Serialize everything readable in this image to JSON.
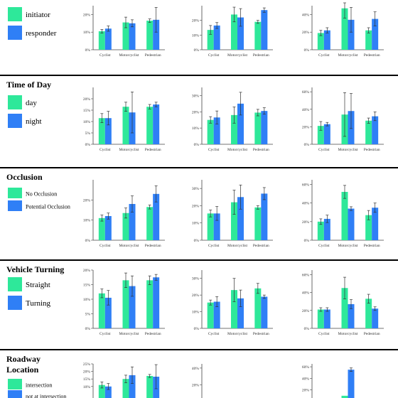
{
  "colors": {
    "green": "#2ee89a",
    "blue": "#2f7ff6",
    "rule": "#000000",
    "axis": "#444444",
    "errbar": "#333333"
  },
  "categories": [
    "Cyclist",
    "Motorcyclist",
    "Pedestrian"
  ],
  "chart_data": [
    {
      "type": "bar",
      "title": "",
      "legend": [
        "initiator",
        "responder"
      ],
      "panels": [
        {
          "ylim": [
            0,
            25
          ],
          "yticks": [
            "0%",
            "10%",
            "20%"
          ],
          "tick_values": [
            0,
            10,
            20
          ],
          "series": [
            {
              "name": "initiator",
              "values": [
                10.5,
                15.5,
                16.5
              ],
              "err": [
                1,
                3,
                1
              ]
            },
            {
              "name": "responder",
              "values": [
                12,
                15,
                17
              ],
              "err": [
                1.5,
                2,
                7
              ]
            }
          ]
        },
        {
          "ylim": [
            0,
            30
          ],
          "yticks": [
            "0%",
            "10%",
            "20%"
          ],
          "tick_values": [
            0,
            10,
            20
          ],
          "series": [
            {
              "name": "initiator",
              "values": [
                13.5,
                24,
                19
              ],
              "err": [
                3,
                5,
                1
              ]
            },
            {
              "name": "responder",
              "values": [
                16.5,
                22,
                27
              ],
              "err": [
                2,
                6,
                1.5
              ]
            }
          ]
        },
        {
          "ylim": [
            0,
            50
          ],
          "yticks": [
            "0%",
            "20%",
            "40%"
          ],
          "tick_values": [
            0,
            20,
            40
          ],
          "series": [
            {
              "name": "initiator",
              "values": [
                19,
                47,
                22
              ],
              "err": [
                3,
                11,
                3
              ]
            },
            {
              "name": "responder",
              "values": [
                22,
                34,
                35
              ],
              "err": [
                3,
                14,
                8
              ]
            }
          ]
        }
      ]
    },
    {
      "type": "bar",
      "title": "Time of Day",
      "legend": [
        "day",
        "night"
      ],
      "panels": [
        {
          "ylim": [
            0,
            25
          ],
          "yticks": [
            "0%",
            "5%",
            "10%",
            "15%",
            "20%"
          ],
          "tick_values": [
            0,
            5,
            10,
            15,
            20
          ],
          "series": [
            {
              "name": "day",
              "values": [
                11.5,
                16.5,
                16.5
              ],
              "err": [
                2,
                2,
                1
              ]
            },
            {
              "name": "night",
              "values": [
                11.5,
                14,
                17.5
              ],
              "err": [
                3,
                9,
                1
              ]
            }
          ]
        },
        {
          "ylim": [
            0,
            35
          ],
          "yticks": [
            "0%",
            "10%",
            "20%",
            "30%"
          ],
          "tick_values": [
            0,
            10,
            20,
            30
          ],
          "series": [
            {
              "name": "day",
              "values": [
                15,
                18,
                19.5
              ],
              "err": [
                2,
                5,
                2
              ]
            },
            {
              "name": "night",
              "values": [
                16.5,
                25,
                20.5
              ],
              "err": [
                4,
                7,
                2
              ]
            }
          ]
        },
        {
          "ylim": [
            0,
            65
          ],
          "yticks": [
            "0%",
            "20%",
            "40%",
            "60%"
          ],
          "tick_values": [
            0,
            20,
            40,
            60
          ],
          "series": [
            {
              "name": "day",
              "values": [
                21,
                34,
                27
              ],
              "err": [
                5,
                25,
                3
              ]
            },
            {
              "name": "night",
              "values": [
                23,
                38,
                32
              ],
              "err": [
                2,
                20,
                5
              ]
            }
          ]
        }
      ]
    },
    {
      "type": "bar",
      "title": "Occlusion",
      "legend": [
        "No Occlusion",
        "Potential Occlusion"
      ],
      "panels": [
        {
          "ylim": [
            0,
            30
          ],
          "yticks": [
            "0%",
            "10%",
            "20%"
          ],
          "tick_values": [
            0,
            10,
            20
          ],
          "series": [
            {
              "name": "No Occlusion",
              "values": [
                11,
                13.5,
                16.5
              ],
              "err": [
                1.5,
                2.5,
                1
              ]
            },
            {
              "name": "Potential Occlusion",
              "values": [
                12,
                18,
                23
              ],
              "err": [
                1.5,
                4,
                4
              ]
            }
          ]
        },
        {
          "ylim": [
            0,
            35
          ],
          "yticks": [
            "0%",
            "10%",
            "20%",
            "30%"
          ],
          "tick_values": [
            0,
            10,
            20,
            30
          ],
          "series": [
            {
              "name": "No Occlusion",
              "values": [
                15.5,
                22,
                19
              ],
              "err": [
                2,
                7,
                1
              ]
            },
            {
              "name": "Potential Occlusion",
              "values": [
                15.5,
                25,
                27
              ],
              "err": [
                4,
                7,
                3.5
              ]
            }
          ]
        },
        {
          "ylim": [
            0,
            65
          ],
          "yticks": [
            "0%",
            "20%",
            "40%",
            "60%"
          ],
          "tick_values": [
            0,
            20,
            40,
            60
          ],
          "series": [
            {
              "name": "No Occlusion",
              "values": [
                20,
                52,
                27
              ],
              "err": [
                3,
                7,
                5
              ]
            },
            {
              "name": "Potential Occlusion",
              "values": [
                23,
                34,
                35
              ],
              "err": [
                4,
                2,
                5
              ]
            }
          ]
        }
      ]
    },
    {
      "type": "bar",
      "title": "Vehicle Turning",
      "legend": [
        "Straight",
        "Turning"
      ],
      "panels": [
        {
          "ylim": [
            0,
            20
          ],
          "yticks": [
            "0%",
            "5%",
            "10%",
            "15%",
            "20%"
          ],
          "tick_values": [
            0,
            5,
            10,
            15,
            20
          ],
          "series": [
            {
              "name": "Straight",
              "values": [
                12,
                16.5,
                16.5
              ],
              "err": [
                1.5,
                2.5,
                1.5
              ]
            },
            {
              "name": "Turning",
              "values": [
                10.5,
                14.5,
                17.5
              ],
              "err": [
                2.5,
                3.5,
                1
              ]
            }
          ]
        },
        {
          "ylim": [
            0,
            35
          ],
          "yticks": [
            "0%",
            "10%",
            "20%",
            "30%"
          ],
          "tick_values": [
            0,
            10,
            20,
            30
          ],
          "series": [
            {
              "name": "Straight",
              "values": [
                15.5,
                23,
                24
              ],
              "err": [
                1.5,
                7,
                3
              ]
            },
            {
              "name": "Turning",
              "values": [
                16,
                18,
                19
              ],
              "err": [
                3,
                5,
                1
              ]
            }
          ]
        },
        {
          "ylim": [
            0,
            65
          ],
          "yticks": [
            "0%",
            "20%",
            "40%",
            "60%"
          ],
          "tick_values": [
            0,
            20,
            40,
            60
          ],
          "series": [
            {
              "name": "Straight",
              "values": [
                21,
                45,
                33
              ],
              "err": [
                2,
                12,
                5
              ]
            },
            {
              "name": "Turning",
              "values": [
                21,
                27,
                22
              ],
              "err": [
                2,
                5,
                2
              ]
            }
          ]
        }
      ]
    },
    {
      "type": "bar",
      "title": "Roadway Location",
      "legend": [
        "intersection",
        "not at intersection"
      ],
      "panels": [
        {
          "ylim": [
            0,
            25
          ],
          "yticks": [
            "10%",
            "15%",
            "20%",
            "25%"
          ],
          "tick_values": [
            10,
            15,
            20,
            25
          ],
          "series": [
            {
              "name": "intersection",
              "values": [
                11,
                15,
                17
              ],
              "err": [
                2,
                2.5,
                1
              ]
            },
            {
              "name": "not at intersection",
              "values": [
                10,
                17.5,
                16.5
              ],
              "err": [
                2,
                5.5,
                8
              ]
            }
          ]
        },
        {
          "ylim": [
            0,
            45
          ],
          "yticks": [
            "20%",
            "40%"
          ],
          "tick_values": [
            20,
            40
          ],
          "series": [
            {
              "name": "intersection",
              "values": [
                0,
                0,
                0
              ],
              "err": [
                0,
                0,
                0
              ]
            },
            {
              "name": "not at intersection",
              "values": [
                0,
                0,
                0
              ],
              "err": [
                0,
                0,
                0
              ]
            }
          ]
        },
        {
          "ylim": [
            0,
            65
          ],
          "yticks": [
            "20%",
            "40%",
            "60%"
          ],
          "tick_values": [
            20,
            40,
            60
          ],
          "series": [
            {
              "name": "intersection",
              "values": [
                0,
                10,
                0
              ],
              "err": [
                0,
                0,
                0
              ]
            },
            {
              "name": "not at intersection",
              "values": [
                0,
                55,
                0
              ],
              "err": [
                0,
                3,
                0
              ]
            }
          ]
        }
      ]
    }
  ]
}
